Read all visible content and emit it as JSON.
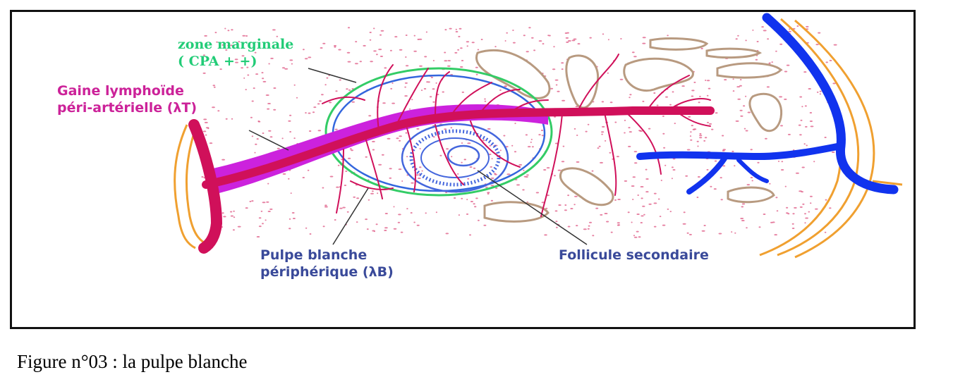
{
  "labels": {
    "zone_marginale_line1": "zone marginale",
    "zone_marginale_line2": "( CPA + +)",
    "gaine_line1": "Gaine lymphoïde",
    "gaine_line2": "péri-artérielle (λT)",
    "pulpe_line1": "Pulpe blanche",
    "pulpe_line2": "périphérique (λB)",
    "follicule": "Follicule secondaire"
  },
  "caption": "Figure n°03 : la pulpe blanche",
  "colors": {
    "frame": "#111111",
    "artery": "#d0105a",
    "sheath": "#cc22dd",
    "vein": "#1133ee",
    "capsule": "#f0a030",
    "marginal_zone": "#33cc66",
    "follicle": "#4466dd",
    "sinus": "#b89a80",
    "dots": "#e0608a"
  }
}
